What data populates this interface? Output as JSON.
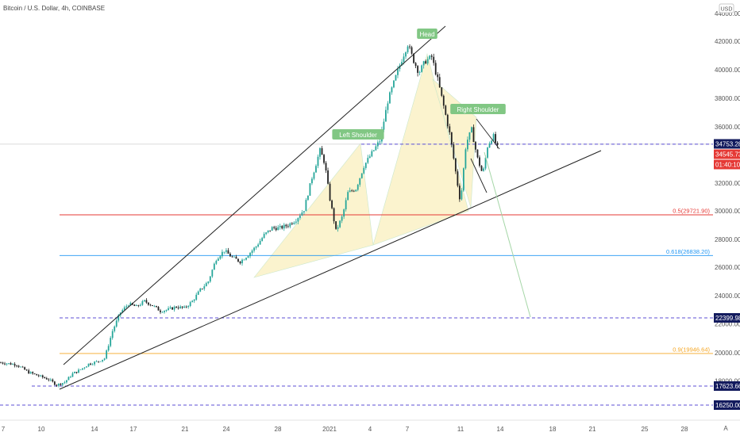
{
  "header": {
    "title": "Bitcoin / U.S. Dollar, 4h, COINBASE",
    "currency_badge": "USD",
    "auto_button": "A"
  },
  "colors": {
    "up_candle": "#26a69a",
    "down_candle": "#222222",
    "trend_line": "#222222",
    "fib_05": "#e53935",
    "fib_0618": "#2196f3",
    "fib_09": "#f5a623",
    "support_dashed": "#5c4fd6",
    "pattern_fill": "#fbf3cc",
    "projection": "#a5d6a7",
    "annotation_bg": "#81c784",
    "price_tag_current": "#e53935",
    "price_tag_dark": "#131b5e"
  },
  "chart_data": {
    "type": "candlestick",
    "title": "Bitcoin / U.S. Dollar, 4h, COINBASE",
    "ylim": [
      15600,
      44200
    ],
    "y_ticks": [
      "44000.00",
      "42000.00",
      "40000.00",
      "38000.00",
      "36000.00",
      "32000.00",
      "30000.00",
      "28000.00",
      "26000.00",
      "24000.00",
      "22000.00",
      "20000.00",
      "18000.00"
    ],
    "x_ticks": [
      "7",
      "10",
      "14",
      "17",
      "21",
      "24",
      "28",
      "2021",
      "4",
      "7",
      "11",
      "14",
      "18",
      "21",
      "25",
      "28"
    ],
    "key_prices": [
      {
        "t": 0,
        "p": 19300
      },
      {
        "t": 2,
        "p": 19150
      },
      {
        "t": 3.5,
        "p": 18600
      },
      {
        "t": 5,
        "p": 18300
      },
      {
        "t": 6,
        "p": 18100
      },
      {
        "t": 7,
        "p": 17700
      },
      {
        "t": 8,
        "p": 17900
      },
      {
        "t": 9,
        "p": 18500
      },
      {
        "t": 10,
        "p": 18800
      },
      {
        "t": 11,
        "p": 19200
      },
      {
        "t": 12,
        "p": 19350
      },
      {
        "t": 13,
        "p": 19600
      },
      {
        "t": 14,
        "p": 21500
      },
      {
        "t": 15,
        "p": 22800
      },
      {
        "t": 16,
        "p": 23400
      },
      {
        "t": 17,
        "p": 23200
      },
      {
        "t": 18,
        "p": 23600
      },
      {
        "t": 19,
        "p": 23300
      },
      {
        "t": 20,
        "p": 22900
      },
      {
        "t": 21,
        "p": 23000
      },
      {
        "t": 22,
        "p": 23200
      },
      {
        "t": 23,
        "p": 23100
      },
      {
        "t": 24,
        "p": 23600
      },
      {
        "t": 25,
        "p": 24400
      },
      {
        "t": 26,
        "p": 25000
      },
      {
        "t": 27,
        "p": 26600
      },
      {
        "t": 28,
        "p": 27200
      },
      {
        "t": 29,
        "p": 26700
      },
      {
        "t": 30,
        "p": 26400
      },
      {
        "t": 31,
        "p": 26900
      },
      {
        "t": 32,
        "p": 27500
      },
      {
        "t": 33,
        "p": 28300
      },
      {
        "t": 34,
        "p": 28800
      },
      {
        "t": 35,
        "p": 28800
      },
      {
        "t": 36,
        "p": 29000
      },
      {
        "t": 37,
        "p": 29400
      },
      {
        "t": 38,
        "p": 30100
      },
      {
        "t": 39,
        "p": 32400
      },
      {
        "t": 40,
        "p": 34300
      },
      {
        "t": 40.6,
        "p": 33400
      },
      {
        "t": 41.2,
        "p": 31000
      },
      {
        "t": 42,
        "p": 28600
      },
      {
        "t": 42.8,
        "p": 29600
      },
      {
        "t": 43.5,
        "p": 31300
      },
      {
        "t": 44.5,
        "p": 31600
      },
      {
        "t": 45.5,
        "p": 33200
      },
      {
        "t": 46.5,
        "p": 34100
      },
      {
        "t": 47.5,
        "p": 35000
      },
      {
        "t": 48.5,
        "p": 37800
      },
      {
        "t": 49.5,
        "p": 39500
      },
      {
        "t": 50.3,
        "p": 40800
      },
      {
        "t": 51,
        "p": 41800
      },
      {
        "t": 51.7,
        "p": 40700
      },
      {
        "t": 52.4,
        "p": 39800
      },
      {
        "t": 53.2,
        "p": 40600
      },
      {
        "t": 54,
        "p": 40900
      },
      {
        "t": 54.8,
        "p": 39200
      },
      {
        "t": 55.6,
        "p": 37200
      },
      {
        "t": 56.3,
        "p": 35400
      },
      {
        "t": 57,
        "p": 32800
      },
      {
        "t": 57.6,
        "p": 30600
      },
      {
        "t": 58.3,
        "p": 34800
      },
      {
        "t": 59,
        "p": 35800
      },
      {
        "t": 59.7,
        "p": 33800
      },
      {
        "t": 60.4,
        "p": 32600
      },
      {
        "t": 61,
        "p": 34600
      },
      {
        "t": 61.7,
        "p": 35400
      },
      {
        "t": 62.2,
        "p": 34500
      }
    ],
    "fib_levels": [
      {
        "label": "0.5(29721.90)",
        "value": 29721.9,
        "color": "#e53935"
      },
      {
        "label": "0.618(26838.20)",
        "value": 26838.2,
        "color": "#2196f3"
      },
      {
        "label": "0.9(19946.64)",
        "value": 19946.64,
        "color": "#f5a623"
      }
    ],
    "dashed_levels": [
      34753.28,
      22399.98,
      17623.66,
      16250.0
    ],
    "price_tags": [
      {
        "label": "34753.28",
        "value": 34753.28,
        "style": "dark"
      },
      {
        "label": "34545.73",
        "value": 34545.73,
        "style": "current"
      },
      {
        "label": "01:40:10",
        "value": 33350,
        "style": "current"
      },
      {
        "label": "22399.98",
        "value": 22399.98,
        "style": "dark"
      },
      {
        "label": "17623.66",
        "value": 17623.66,
        "style": "dark"
      },
      {
        "label": "16250.00",
        "value": 16250.0,
        "style": "dark"
      }
    ],
    "annotations": [
      {
        "label": "Head",
        "t": 51,
        "p": 43350
      },
      {
        "label": "Left Shoulder",
        "t": 40.8,
        "p": 35900
      },
      {
        "label": "Right Shoulder",
        "t": 59.5,
        "p": 37200
      }
    ]
  }
}
